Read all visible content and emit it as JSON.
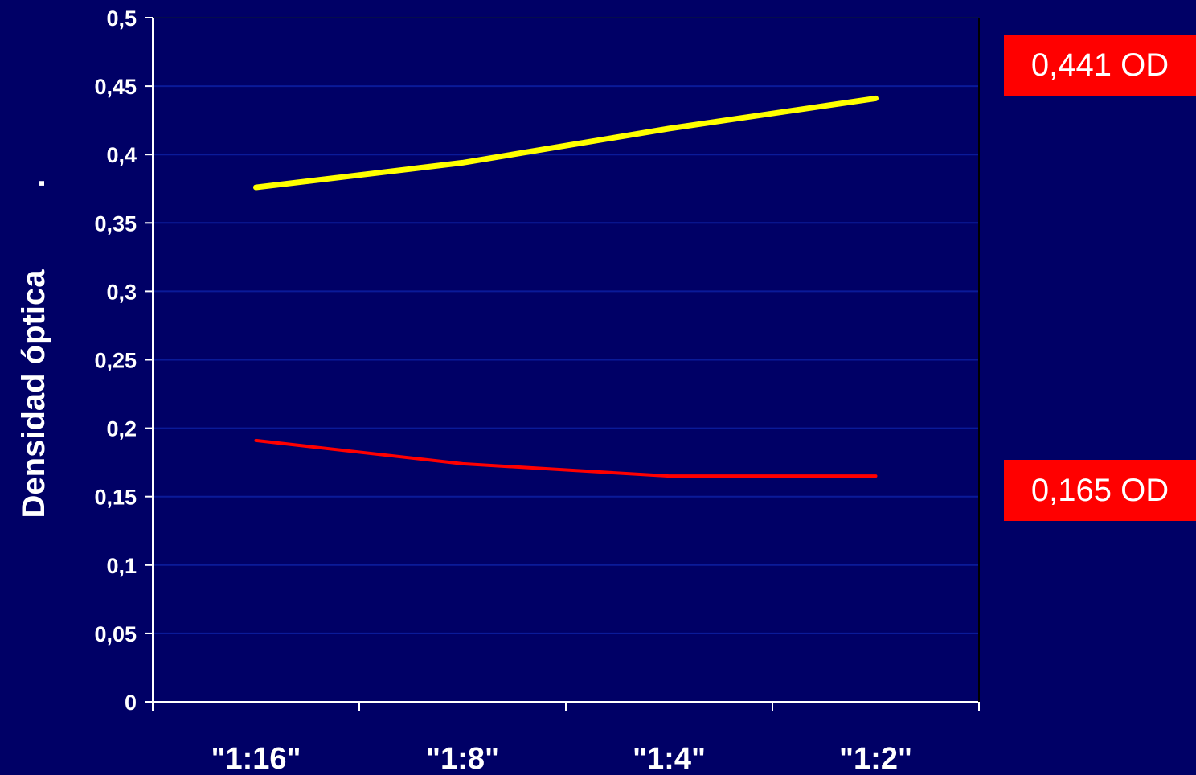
{
  "chart_data": {
    "type": "line",
    "categories": [
      "\"1:16\"",
      "\"1:8\"",
      "\"1:4\"",
      "\"1:2\""
    ],
    "series": [
      {
        "values": [
          0.376,
          0.394,
          0.419,
          0.441
        ],
        "color": "#ffff00"
      },
      {
        "values": [
          0.191,
          0.174,
          0.165,
          0.165
        ],
        "color": "#ff0000"
      }
    ],
    "ylabel": "Densidad óptica",
    "ylabel_suffix": ".",
    "ylim": [
      0,
      0.5
    ],
    "yticks": [
      "0",
      "0,05",
      "0,1",
      "0,15",
      "0,2",
      "0,25",
      "0,3",
      "0,35",
      "0,4",
      "0,45",
      "0,5"
    ],
    "grid": true,
    "annotations": [
      {
        "text": "0,441 OD",
        "color": "#ff0000"
      },
      {
        "text": "0,165 OD",
        "color": "#ff0000"
      }
    ]
  }
}
